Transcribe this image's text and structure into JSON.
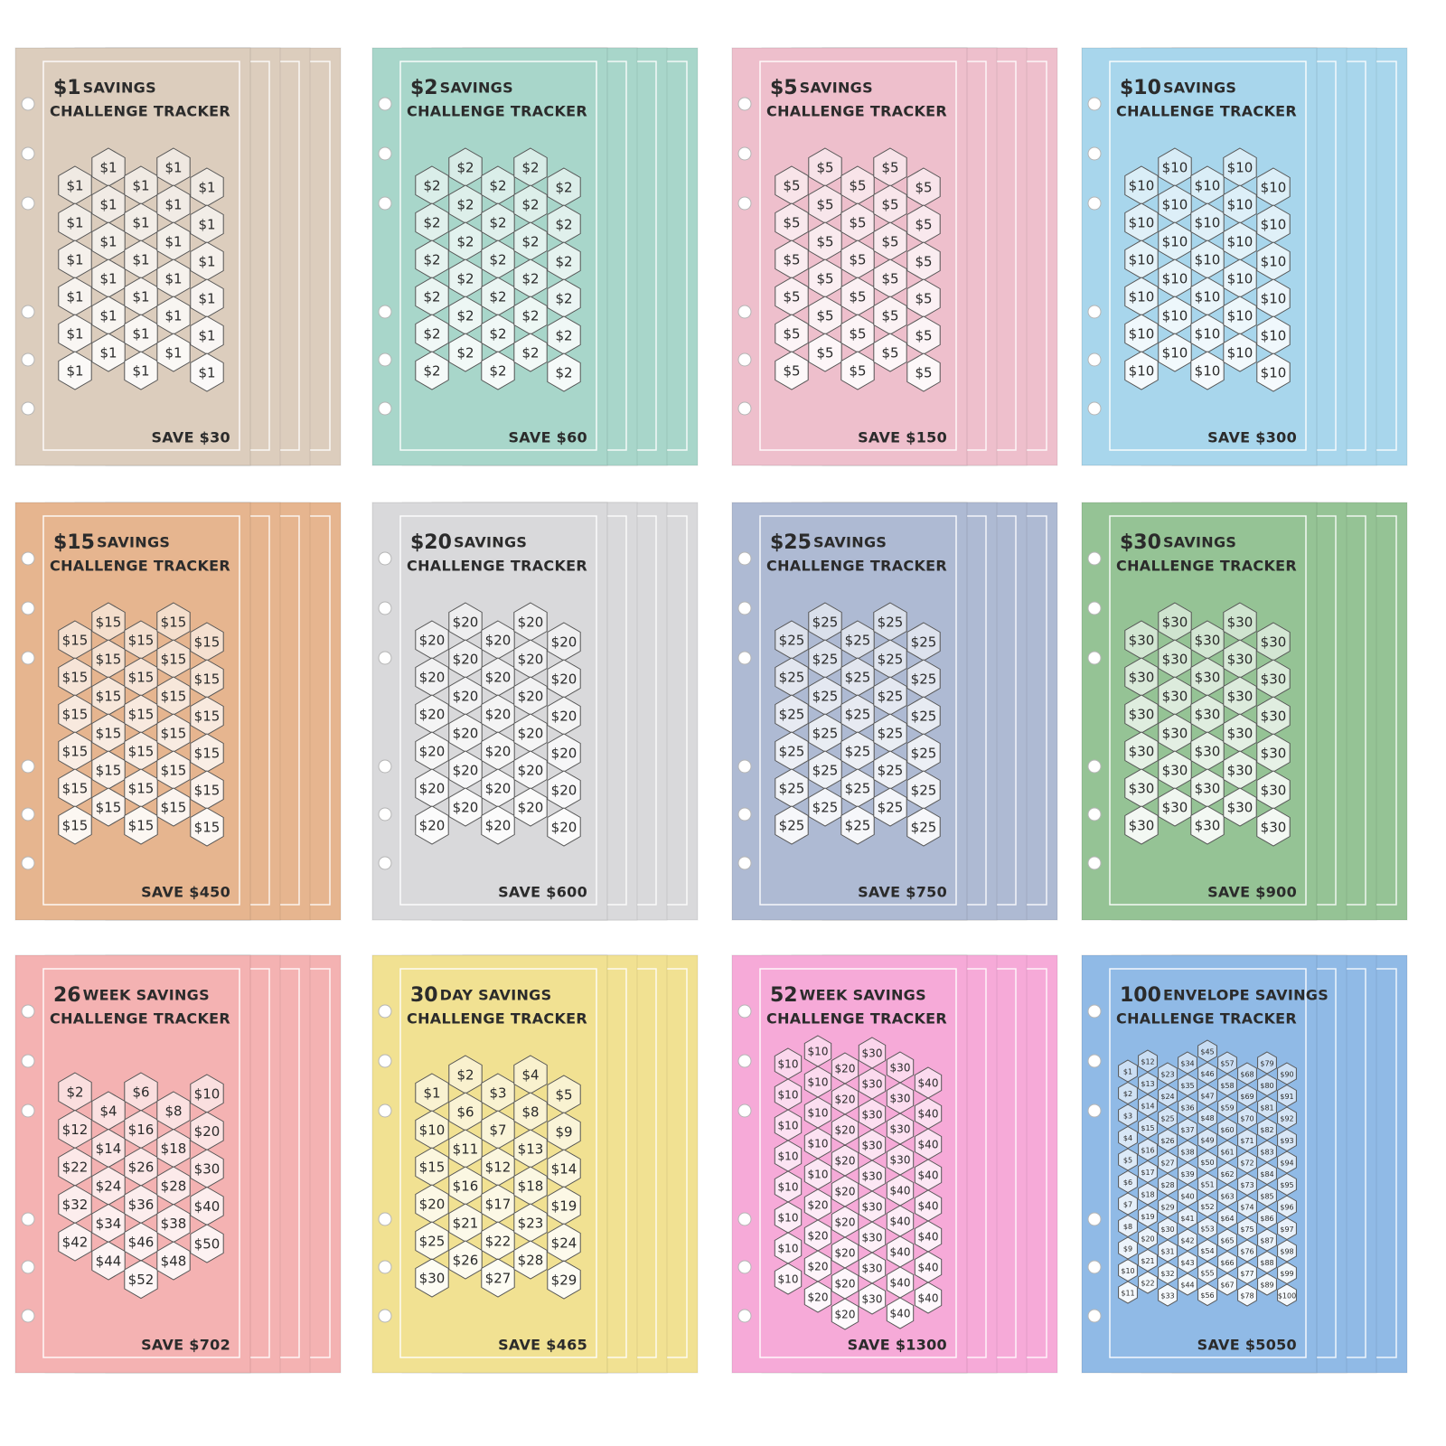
{
  "cards": [
    {
      "color": "#dccdbd",
      "title": {
        "lead": "$1",
        "rest": "SAVINGS",
        "line2": "CHALLENGE TRACKER"
      },
      "footer": "SAVE $30",
      "columns": [
        [
          "$1",
          "$1",
          "$1",
          "$1",
          "$1",
          "$1"
        ],
        [
          "$1",
          "$1",
          "$1",
          "$1",
          "$1",
          "$1"
        ],
        [
          "$1",
          "$1",
          "$1",
          "$1",
          "$1",
          "$1"
        ],
        [
          "$1",
          "$1",
          "$1",
          "$1",
          "$1",
          "$1"
        ],
        [
          "$1",
          "$1",
          "$1",
          "$1",
          "$1",
          "$1"
        ]
      ]
    },
    {
      "color": "#a8d6ca",
      "title": {
        "lead": "$2",
        "rest": "SAVINGS",
        "line2": "CHALLENGE TRACKER"
      },
      "footer": "SAVE $60",
      "columns": [
        [
          "$2",
          "$2",
          "$2",
          "$2",
          "$2",
          "$2"
        ],
        [
          "$2",
          "$2",
          "$2",
          "$2",
          "$2",
          "$2"
        ],
        [
          "$2",
          "$2",
          "$2",
          "$2",
          "$2",
          "$2"
        ],
        [
          "$2",
          "$2",
          "$2",
          "$2",
          "$2",
          "$2"
        ],
        [
          "$2",
          "$2",
          "$2",
          "$2",
          "$2",
          "$2"
        ]
      ]
    },
    {
      "color": "#eebfcc",
      "title": {
        "lead": "$5",
        "rest": "SAVINGS",
        "line2": "CHALLENGE TRACKER"
      },
      "footer": "SAVE $150",
      "columns": [
        [
          "$5",
          "$5",
          "$5",
          "$5",
          "$5",
          "$5"
        ],
        [
          "$5",
          "$5",
          "$5",
          "$5",
          "$5",
          "$5"
        ],
        [
          "$5",
          "$5",
          "$5",
          "$5",
          "$5",
          "$5"
        ],
        [
          "$5",
          "$5",
          "$5",
          "$5",
          "$5",
          "$5"
        ],
        [
          "$5",
          "$5",
          "$5",
          "$5",
          "$5",
          "$5"
        ]
      ]
    },
    {
      "color": "#a8d6ec",
      "title": {
        "lead": "$10",
        "rest": "SAVINGS",
        "line2": "CHALLENGE TRACKER"
      },
      "footer": "SAVE $300",
      "columns": [
        [
          "$10",
          "$10",
          "$10",
          "$10",
          "$10",
          "$10"
        ],
        [
          "$10",
          "$10",
          "$10",
          "$10",
          "$10",
          "$10"
        ],
        [
          "$10",
          "$10",
          "$10",
          "$10",
          "$10",
          "$10"
        ],
        [
          "$10",
          "$10",
          "$10",
          "$10",
          "$10",
          "$10"
        ],
        [
          "$10",
          "$10",
          "$10",
          "$10",
          "$10",
          "$10"
        ]
      ]
    },
    {
      "color": "#e6b58f",
      "title": {
        "lead": "$15",
        "rest": "SAVINGS",
        "line2": "CHALLENGE TRACKER"
      },
      "footer": "SAVE $450",
      "columns": [
        [
          "$15",
          "$15",
          "$15",
          "$15",
          "$15",
          "$15"
        ],
        [
          "$15",
          "$15",
          "$15",
          "$15",
          "$15",
          "$15"
        ],
        [
          "$15",
          "$15",
          "$15",
          "$15",
          "$15",
          "$15"
        ],
        [
          "$15",
          "$15",
          "$15",
          "$15",
          "$15",
          "$15"
        ],
        [
          "$15",
          "$15",
          "$15",
          "$15",
          "$15",
          "$15"
        ]
      ]
    },
    {
      "color": "#d9d9db",
      "title": {
        "lead": "$20",
        "rest": "SAVINGS",
        "line2": "CHALLENGE TRACKER"
      },
      "footer": "SAVE $600",
      "columns": [
        [
          "$20",
          "$20",
          "$20",
          "$20",
          "$20",
          "$20"
        ],
        [
          "$20",
          "$20",
          "$20",
          "$20",
          "$20",
          "$20"
        ],
        [
          "$20",
          "$20",
          "$20",
          "$20",
          "$20",
          "$20"
        ],
        [
          "$20",
          "$20",
          "$20",
          "$20",
          "$20",
          "$20"
        ],
        [
          "$20",
          "$20",
          "$20",
          "$20",
          "$20",
          "$20"
        ]
      ]
    },
    {
      "color": "#aebad3",
      "title": {
        "lead": "$25",
        "rest": "SAVINGS",
        "line2": "CHALLENGE TRACKER"
      },
      "footer": "SAVE $750",
      "columns": [
        [
          "$25",
          "$25",
          "$25",
          "$25",
          "$25",
          "$25"
        ],
        [
          "$25",
          "$25",
          "$25",
          "$25",
          "$25",
          "$25"
        ],
        [
          "$25",
          "$25",
          "$25",
          "$25",
          "$25",
          "$25"
        ],
        [
          "$25",
          "$25",
          "$25",
          "$25",
          "$25",
          "$25"
        ],
        [
          "$25",
          "$25",
          "$25",
          "$25",
          "$25",
          "$25"
        ]
      ]
    },
    {
      "color": "#95c395",
      "title": {
        "lead": "$30",
        "rest": "SAVINGS",
        "line2": "CHALLENGE TRACKER"
      },
      "footer": "SAVE $900",
      "columns": [
        [
          "$30",
          "$30",
          "$30",
          "$30",
          "$30",
          "$30"
        ],
        [
          "$30",
          "$30",
          "$30",
          "$30",
          "$30",
          "$30"
        ],
        [
          "$30",
          "$30",
          "$30",
          "$30",
          "$30",
          "$30"
        ],
        [
          "$30",
          "$30",
          "$30",
          "$30",
          "$30",
          "$30"
        ],
        [
          "$30",
          "$30",
          "$30",
          "$30",
          "$30",
          "$30"
        ]
      ]
    },
    {
      "color": "#f4b2b2",
      "title": {
        "lead": "26",
        "rest": "WEEK SAVINGS",
        "line2": "CHALLENGE TRACKER"
      },
      "footer": "SAVE $702",
      "columns": [
        [
          "$2",
          "$12",
          "$22",
          "$32",
          "$42"
        ],
        [
          "$4",
          "$14",
          "$24",
          "$34",
          "$44"
        ],
        [
          "$6",
          "$16",
          "$26",
          "$36",
          "$46",
          "$52"
        ],
        [
          "$8",
          "$18",
          "$28",
          "$38",
          "$48"
        ],
        [
          "$10",
          "$20",
          "$30",
          "$40",
          "$50"
        ]
      ]
    },
    {
      "color": "#f1e192",
      "title": {
        "lead": "30",
        "rest": "DAY SAVINGS",
        "line2": "CHALLENGE TRACKER"
      },
      "footer": "SAVE $465",
      "columns": [
        [
          "$1",
          "$10",
          "$15",
          "$20",
          "$25",
          "$30"
        ],
        [
          "$2",
          "$6",
          "$11",
          "$16",
          "$21",
          "$26"
        ],
        [
          "$3",
          "$7",
          "$12",
          "$17",
          "$22",
          "$27"
        ],
        [
          "$4",
          "$8",
          "$13",
          "$18",
          "$23",
          "$28"
        ],
        [
          "$5",
          "$9",
          "$14",
          "$19",
          "$24",
          "$29"
        ]
      ]
    },
    {
      "color": "#f6aad8",
      "title": {
        "lead": "52",
        "rest": "WEEK SAVINGS",
        "line2": "CHALLENGE TRACKER"
      },
      "footer": "SAVE $1300",
      "columns": [
        [
          "$10",
          "$10",
          "$10",
          "$10",
          "$10",
          "$10",
          "$10",
          "$10"
        ],
        [
          "$10",
          "$10",
          "$10",
          "$10",
          "$10",
          "$20",
          "$20",
          "$20",
          "$20"
        ],
        [
          "$20",
          "$20",
          "$20",
          "$20",
          "$20",
          "$20",
          "$20",
          "$20",
          "$20"
        ],
        [
          "$30",
          "$30",
          "$30",
          "$30",
          "$30",
          "$30",
          "$30",
          "$30",
          "$30"
        ],
        [
          "$30",
          "$30",
          "$30",
          "$30",
          "$40",
          "$40",
          "$40",
          "$40",
          "$40"
        ],
        [
          "$40",
          "$40",
          "$40",
          "$40",
          "$40",
          "$40",
          "$40",
          "$40"
        ]
      ]
    },
    {
      "color": "#90bae6",
      "title": {
        "lead": "100",
        "rest": "ENVELOPE SAVINGS",
        "line2": "CHALLENGE TRACKER"
      },
      "footer": "SAVE $5050",
      "columns": [
        [
          "$1",
          "$2",
          "$3",
          "$4",
          "$5",
          "$6",
          "$7",
          "$8",
          "$9",
          "$10",
          "$11"
        ],
        [
          "$12",
          "$13",
          "$14",
          "$15",
          "$16",
          "$17",
          "$18",
          "$19",
          "$20",
          "$21",
          "$22"
        ],
        [
          "$23",
          "$24",
          "$25",
          "$26",
          "$27",
          "$28",
          "$29",
          "$30",
          "$31",
          "$32",
          "$33"
        ],
        [
          "$34",
          "$35",
          "$36",
          "$37",
          "$38",
          "$39",
          "$40",
          "$41",
          "$42",
          "$43",
          "$44"
        ],
        [
          "$45",
          "$46",
          "$47",
          "$48",
          "$49",
          "$50",
          "$51",
          "$52",
          "$53",
          "$54",
          "$55",
          "$56"
        ],
        [
          "$57",
          "$58",
          "$59",
          "$60",
          "$61",
          "$62",
          "$63",
          "$64",
          "$65",
          "$66",
          "$67"
        ],
        [
          "$68",
          "$69",
          "$70",
          "$71",
          "$72",
          "$73",
          "$74",
          "$75",
          "$76",
          "$77",
          "$78"
        ],
        [
          "$79",
          "$80",
          "$81",
          "$82",
          "$83",
          "$84",
          "$85",
          "$86",
          "$87",
          "$88",
          "$89"
        ],
        [
          "$90",
          "$91",
          "$92",
          "$93",
          "$94",
          "$95",
          "$96",
          "$97",
          "$98",
          "$99",
          "$100"
        ]
      ]
    }
  ]
}
